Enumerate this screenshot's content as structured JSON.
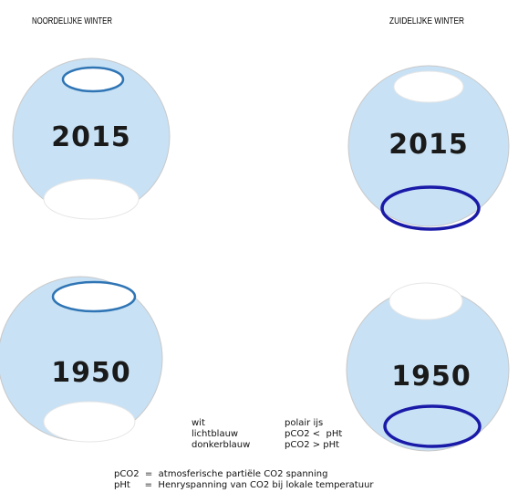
{
  "headers": {
    "left": "NOORDELIJKE WINTER",
    "right": "ZUIDELIJKE WINTER"
  },
  "globes": [
    {
      "label": "2015"
    },
    {
      "label": "2015"
    },
    {
      "label": "1950"
    },
    {
      "label": "1950"
    }
  ],
  "legend": [
    {
      "color": "wit",
      "meaning": "polair ijs"
    },
    {
      "color": "lichtblauw",
      "meaning": "pCO2 <  pHt"
    },
    {
      "color": "donkerblauw",
      "meaning": "pCO2 > pHt"
    }
  ],
  "footnotes": [
    "pCO2  =  atmosferische partiële CO2 spanning",
    "pHt     =  Henryspanning van CO2 bij lokale temperatuur"
  ]
}
